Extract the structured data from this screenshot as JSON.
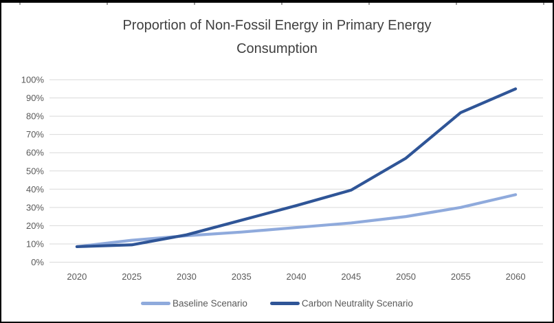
{
  "chart_data": {
    "type": "line",
    "title": "Proportion of Non-Fossil Energy in Primary Energy Consumption",
    "categories": [
      "2020",
      "2025",
      "2030",
      "2035",
      "2040",
      "2045",
      "2050",
      "2055",
      "2060"
    ],
    "series": [
      {
        "name": "Baseline Scenario",
        "color": "#8FAADC",
        "values": [
          8.5,
          12,
          14.5,
          16.5,
          19,
          21.5,
          25,
          30,
          37
        ]
      },
      {
        "name": "Carbon Neutrality Scenario",
        "color": "#2F5597",
        "values": [
          8.5,
          9.5,
          15,
          23,
          31,
          39.5,
          57,
          82,
          95
        ]
      }
    ],
    "y_ticks": [
      "0%",
      "10%",
      "20%",
      "30%",
      "40%",
      "50%",
      "60%",
      "70%",
      "80%",
      "90%",
      "100%"
    ],
    "ylim": [
      0,
      100
    ],
    "xlabel": "",
    "ylabel": "",
    "grid": true,
    "legend_position": "bottom",
    "colors": {
      "gridline": "#D9D9D9",
      "axis_text": "#595959",
      "title_text": "#3F3F3F",
      "background": "#FFFFFF",
      "frame_border": "#000000"
    }
  }
}
